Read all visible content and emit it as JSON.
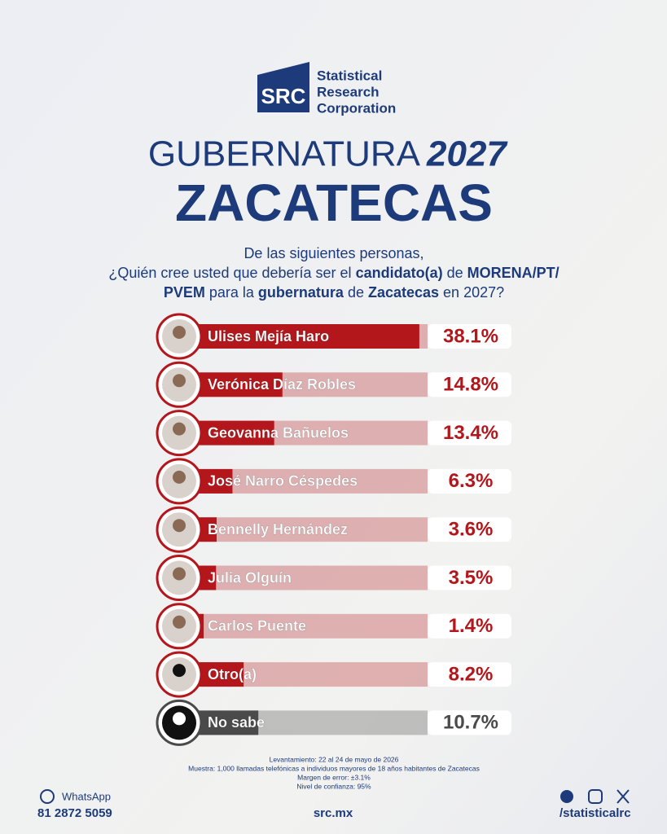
{
  "header": {
    "logo": "SRC",
    "brand": [
      "Statistical",
      "Research",
      "Corporation"
    ]
  },
  "chart_data": {
    "type": "hbar",
    "title": "GUBERNATURA",
    "title_year": "2027",
    "subtitle": "ZACATECAS",
    "question": [
      [
        {
          "text": "De las siguientes personas,",
          "bold": false
        }
      ],
      [
        {
          "text": "¿Quién cree usted que debería ser el ",
          "bold": false
        },
        {
          "text": "candidato(a)",
          "bold": true
        },
        {
          "text": " de ",
          "bold": false
        },
        {
          "text": "MORENA/PT/",
          "bold": true
        }
      ],
      [
        {
          "text": "PVEM",
          "bold": true
        },
        {
          "text": " para la ",
          "bold": false
        },
        {
          "text": "gubernatura",
          "bold": true
        },
        {
          "text": " de ",
          "bold": false
        },
        {
          "text": "Zacatecas",
          "bold": true
        },
        {
          "text": " en 2027?",
          "bold": false
        }
      ]
    ],
    "categories": [
      "Ulises Mejía Haro",
      "Verónica Díaz Robles",
      "Geovanna Bañuelos",
      "José Narro Céspedes",
      "Bennelly Hernández",
      "Julia Olguín",
      "Carlos Puente",
      "Otro(a)",
      "No sabe"
    ],
    "values": [
      38.1,
      14.8,
      13.4,
      6.3,
      3.6,
      3.5,
      1.4,
      8.2,
      10.7
    ],
    "value_labels": [
      "38.1%",
      "14.8%",
      "13.4%",
      "6.3%",
      "3.6%",
      "3.5%",
      "1.4%",
      "8.2%",
      "10.7%"
    ],
    "colors": [
      "#b3161b",
      "#b3161b",
      "#b3161b",
      "#b3161b",
      "#b3161b",
      "#b3161b",
      "#b3161b",
      "#b3161b",
      "#4a4a4a"
    ],
    "xlim": [
      0,
      39.5
    ]
  },
  "footer": {
    "notes": [
      "Levantamiento: 22 al 24 de mayo de 2026",
      "Muestra: 1,000 llamadas telefónicas a individuos mayores de 18 años habitantes de Zacatecas",
      "Margen de error: ±3.1%",
      "Nivel de confianza: 95%"
    ],
    "whatsapp": "WhatsApp",
    "phone": "81 2872 5059",
    "site": "src.mx",
    "handle": "/statisticalrc"
  }
}
